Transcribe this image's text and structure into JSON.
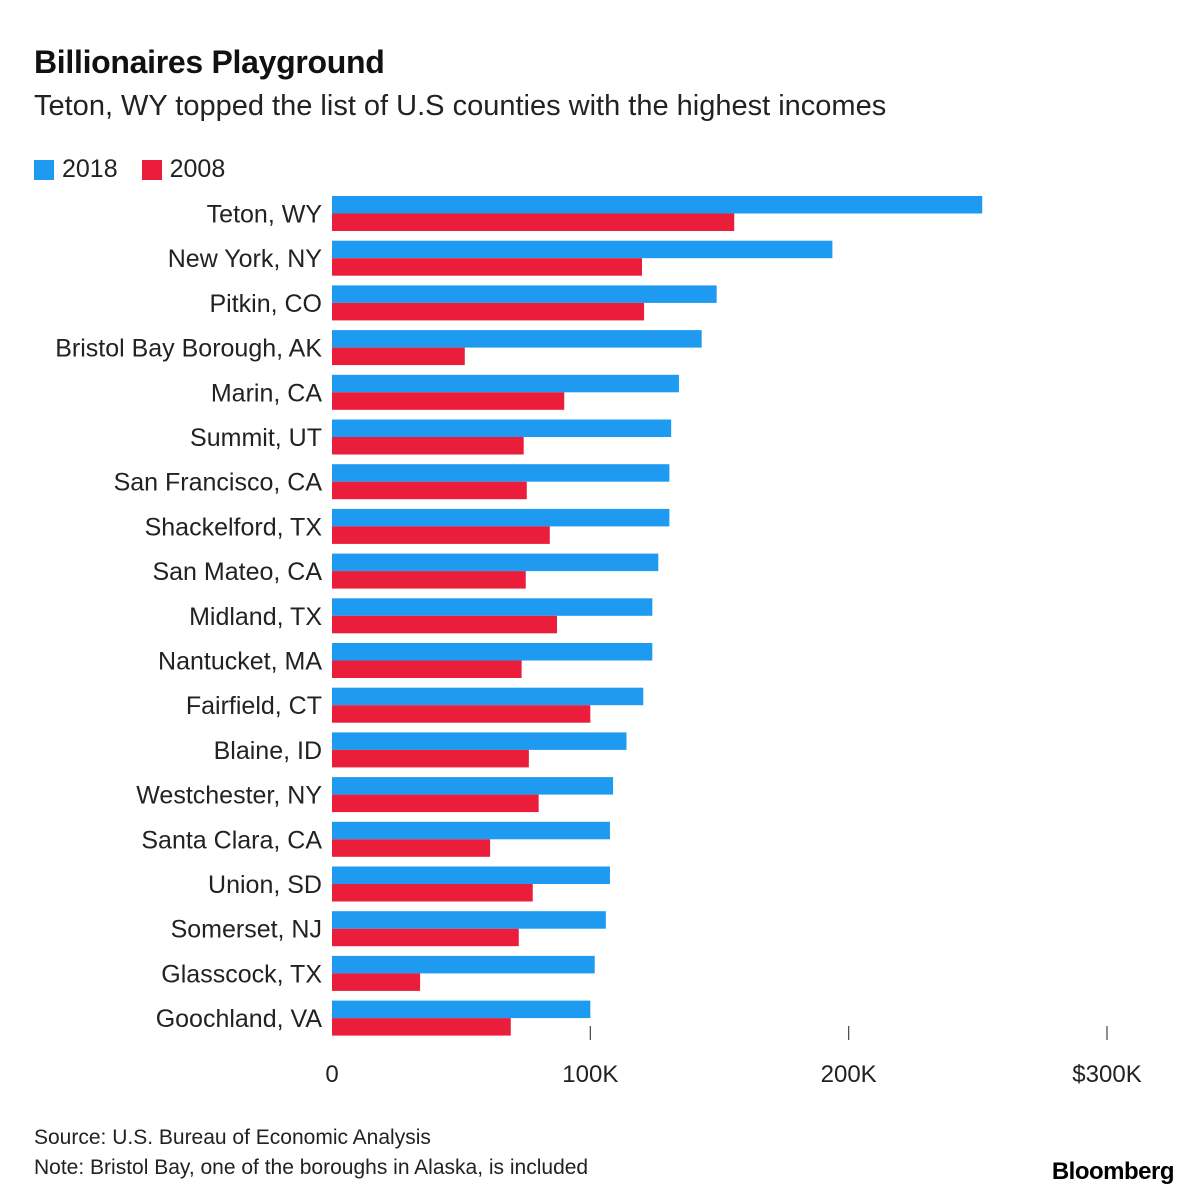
{
  "chart_data": {
    "type": "bar",
    "orientation": "horizontal",
    "title": "Billionaires Playground",
    "subtitle": "Teton, WY topped the list of U.S counties with the highest incomes",
    "categories": [
      "Teton, WY",
      "New York, NY",
      "Pitkin, CO",
      "Bristol Bay Borough, AK",
      "Marin, CA",
      "Summit, UT",
      "San Francisco, CA",
      "Shackelford, TX",
      "San Mateo, CA",
      "Midland, TX",
      "Nantucket, MA",
      "Fairfield, CT",
      "Blaine, ID",
      "Westchester, NY",
      "Santa Clara, CA",
      "Union, SD",
      "Somerset, NJ",
      "Glasscock, TX",
      "Goochland, VA"
    ],
    "series": [
      {
        "name": "2018",
        "color": "#1e9bf0",
        "values": [
          251700,
          193700,
          148900,
          143100,
          134300,
          131300,
          130600,
          130600,
          126300,
          124000,
          124000,
          120500,
          114000,
          108800,
          107600,
          107600,
          106000,
          101700,
          100000
        ]
      },
      {
        "name": "2008",
        "color": "#ea1d3b",
        "values": [
          155700,
          120000,
          120800,
          51400,
          89900,
          74200,
          75400,
          84300,
          75000,
          87100,
          73400,
          100000,
          76200,
          80000,
          61200,
          77700,
          72300,
          34100,
          69200
        ]
      }
    ],
    "xlim": [
      0,
      300000
    ],
    "xticks": [
      0,
      100000,
      200000,
      300000
    ],
    "xtick_labels": [
      "0",
      "100K",
      "200K",
      "$300K"
    ],
    "xlabel": "",
    "ylabel": "",
    "grid": false,
    "legend_position": "top-left"
  },
  "footer": {
    "source": "Source: U.S. Bureau of Economic Analysis",
    "note": "Note: Bristol Bay, one of the boroughs in Alaska, is included",
    "brand": "Bloomberg"
  }
}
